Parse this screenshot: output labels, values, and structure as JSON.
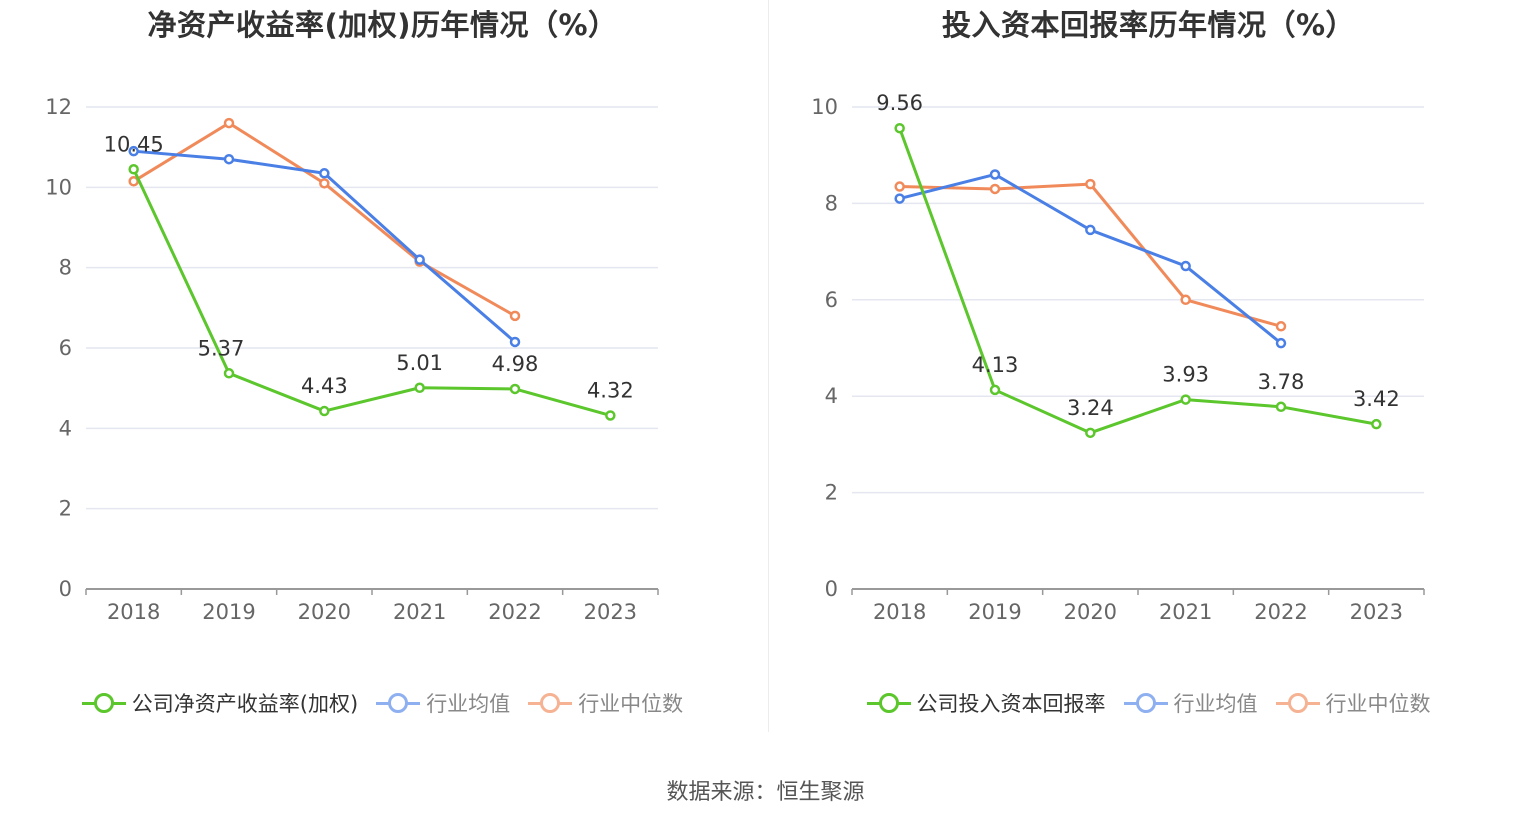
{
  "colors": {
    "company": "#5cc62d",
    "avg": "#4a7fe6",
    "median": "#f18a5a",
    "grid": "#e4e6f0",
    "axis": "#999999"
  },
  "chart_data": [
    {
      "type": "line",
      "title": "净资产收益率(加权)历年情况（%）",
      "categories": [
        "2018",
        "2019",
        "2020",
        "2021",
        "2022",
        "2023"
      ],
      "ylim": [
        0,
        12
      ],
      "yticks": [
        0,
        2,
        4,
        6,
        8,
        10,
        12
      ],
      "grid": true,
      "legend_position": "bottom",
      "series": [
        {
          "name": "公司净资产收益率(加权)",
          "values": [
            10.45,
            5.37,
            4.43,
            5.01,
            4.98,
            4.32
          ],
          "labels": [
            "10.45",
            "5.37",
            "4.43",
            "5.01",
            "4.98",
            "4.32"
          ]
        },
        {
          "name": "行业均值",
          "values": [
            10.9,
            10.7,
            10.35,
            8.2,
            6.15,
            null
          ]
        },
        {
          "name": "行业中位数",
          "values": [
            10.15,
            11.6,
            10.1,
            8.15,
            6.8,
            null
          ]
        }
      ]
    },
    {
      "type": "line",
      "title": "投入资本回报率历年情况（%）",
      "categories": [
        "2018",
        "2019",
        "2020",
        "2021",
        "2022",
        "2023"
      ],
      "ylim": [
        0,
        10
      ],
      "yticks": [
        0,
        2,
        4,
        6,
        8,
        10
      ],
      "grid": true,
      "legend_position": "bottom",
      "series": [
        {
          "name": "公司投入资本回报率",
          "values": [
            9.56,
            4.13,
            3.24,
            3.93,
            3.78,
            3.42
          ],
          "labels": [
            "9.56",
            "4.13",
            "3.24",
            "3.93",
            "3.78",
            "3.42"
          ]
        },
        {
          "name": "行业均值",
          "values": [
            8.1,
            8.6,
            7.45,
            6.7,
            5.1,
            null
          ]
        },
        {
          "name": "行业中位数",
          "values": [
            8.35,
            8.3,
            8.4,
            6.0,
            5.45,
            null
          ]
        }
      ]
    }
  ],
  "source": "数据来源：恒生聚源"
}
